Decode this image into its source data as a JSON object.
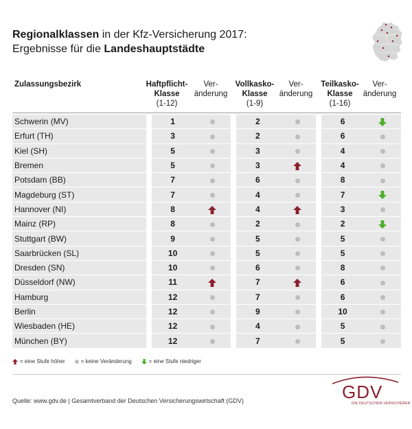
{
  "title": {
    "part1_bold": "Regionalklassen",
    "part1_rest": " in der Kfz-Versicherung 2017:",
    "part2_rest": "Ergebnisse für die ",
    "part2_bold": "Landeshauptstädte"
  },
  "headers": {
    "district": "Zulassungsbezirk",
    "haft_line1": "Haftpflicht-",
    "haft_line2": "Klasse",
    "haft_range": "(1-12)",
    "voll_line1": "Vollkasko-",
    "voll_line2": "Klasse",
    "voll_range": "(1-9)",
    "teil_line1": "Teilkasko-",
    "teil_line2": "Klasse",
    "teil_range": "(1-16)",
    "change_line1": "Ver-",
    "change_line2": "änderung"
  },
  "colors": {
    "up": "#8b1e2f",
    "down": "#4caf2a",
    "none": "#bdbdbd",
    "row_shade": "#e8e8e8"
  },
  "rows": [
    {
      "name": "Schwerin (MV)",
      "haft": "1",
      "haft_chg": "none",
      "voll": "2",
      "voll_chg": "none",
      "teil": "6",
      "teil_chg": "down"
    },
    {
      "name": "Erfurt (TH)",
      "haft": "3",
      "haft_chg": "none",
      "voll": "2",
      "voll_chg": "none",
      "teil": "6",
      "teil_chg": "none"
    },
    {
      "name": "Kiel (SH)",
      "haft": "5",
      "haft_chg": "none",
      "voll": "3",
      "voll_chg": "none",
      "teil": "4",
      "teil_chg": "none"
    },
    {
      "name": "Bremen",
      "haft": "5",
      "haft_chg": "none",
      "voll": "3",
      "voll_chg": "up",
      "teil": "4",
      "teil_chg": "none"
    },
    {
      "name": "Potsdam (BB)",
      "haft": "7",
      "haft_chg": "none",
      "voll": "6",
      "voll_chg": "none",
      "teil": "8",
      "teil_chg": "none"
    },
    {
      "name": "Magdeburg (ST)",
      "haft": "7",
      "haft_chg": "none",
      "voll": "4",
      "voll_chg": "none",
      "teil": "7",
      "teil_chg": "down"
    },
    {
      "name": "Hannover (NI)",
      "haft": "8",
      "haft_chg": "up",
      "voll": "4",
      "voll_chg": "up",
      "teil": "3",
      "teil_chg": "none"
    },
    {
      "name": "Mainz (RP)",
      "haft": "8",
      "haft_chg": "none",
      "voll": "2",
      "voll_chg": "none",
      "teil": "2",
      "teil_chg": "down"
    },
    {
      "name": "Stuttgart (BW)",
      "haft": "9",
      "haft_chg": "none",
      "voll": "5",
      "voll_chg": "none",
      "teil": "5",
      "teil_chg": "none"
    },
    {
      "name": "Saarbrücken (SL)",
      "haft": "10",
      "haft_chg": "none",
      "voll": "5",
      "voll_chg": "none",
      "teil": "5",
      "teil_chg": "none"
    },
    {
      "name": "Dresden (SN)",
      "haft": "10",
      "haft_chg": "none",
      "voll": "6",
      "voll_chg": "none",
      "teil": "8",
      "teil_chg": "none"
    },
    {
      "name": "Düsseldorf (NW)",
      "haft": "11",
      "haft_chg": "up",
      "voll": "7",
      "voll_chg": "up",
      "teil": "6",
      "teil_chg": "none"
    },
    {
      "name": "Hamburg",
      "haft": "12",
      "haft_chg": "none",
      "voll": "7",
      "voll_chg": "none",
      "teil": "6",
      "teil_chg": "none"
    },
    {
      "name": "Berlin",
      "haft": "12",
      "haft_chg": "none",
      "voll": "9",
      "voll_chg": "none",
      "teil": "10",
      "teil_chg": "none"
    },
    {
      "name": "Wiesbaden (HE)",
      "haft": "12",
      "haft_chg": "none",
      "voll": "4",
      "voll_chg": "none",
      "teil": "5",
      "teil_chg": "none"
    },
    {
      "name": "München (BY)",
      "haft": "12",
      "haft_chg": "none",
      "voll": "7",
      "voll_chg": "none",
      "teil": "5",
      "teil_chg": "none"
    }
  ],
  "legend": {
    "up": "= eine Stufe höher",
    "none": "= keine Veränderung",
    "down": "= eine Stufe niedriger"
  },
  "source": "Quelle: www.gdv.de | Gesamtverband der Deutschen Versicherungswirtschaft (GDV)",
  "logo": {
    "text": "GDV",
    "subtitle": "DIE DEUTSCHEN VERSICHERER"
  }
}
